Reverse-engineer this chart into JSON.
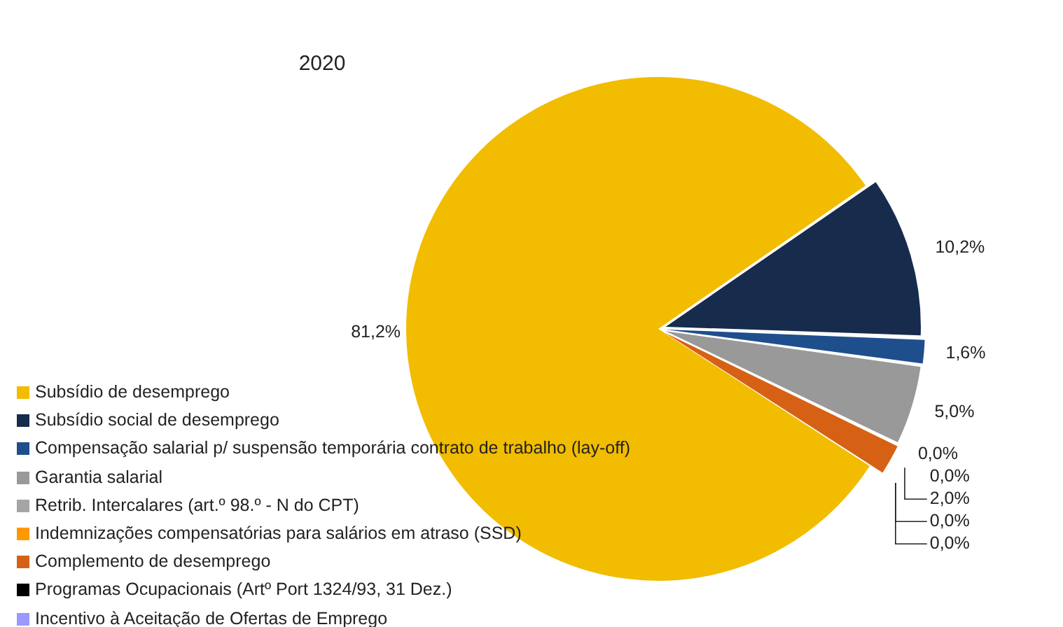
{
  "chart_data": {
    "type": "pie",
    "title": "2020",
    "legend": "bottom left",
    "categories": [
      "Subsídio de desemprego",
      "Subsídio social de desemprego",
      "Compensação salarial p/ suspensão temporária contrato de trabalho (lay-off)",
      "Garantia salarial",
      "Retrib. Intercalares (art.º 98.º - N do CPT)",
      "Indemnizações compensatórias para salários em atraso (SSD)",
      "Complemento de desemprego",
      "Programas Ocupacionais (Artº Port 1324/93, 31 Dez.)",
      "Incentivo à Aceitação de Ofertas de Emprego"
    ],
    "values": [
      81.2,
      10.2,
      1.6,
      5.0,
      0.0,
      0.0,
      2.0,
      0.0,
      0.0
    ],
    "value_labels": [
      "81,2%",
      "10,2%",
      "1,6%",
      "5,0%",
      "0,0%",
      "0,0%",
      "2,0%",
      "0,0%",
      "0,0%"
    ],
    "colors": [
      "#f2bc00",
      "#172b4d",
      "#1f4e8c",
      "#999999",
      "#a5a5a5",
      "#ff9900",
      "#d66115",
      "#000000",
      "#9999ff"
    ]
  }
}
